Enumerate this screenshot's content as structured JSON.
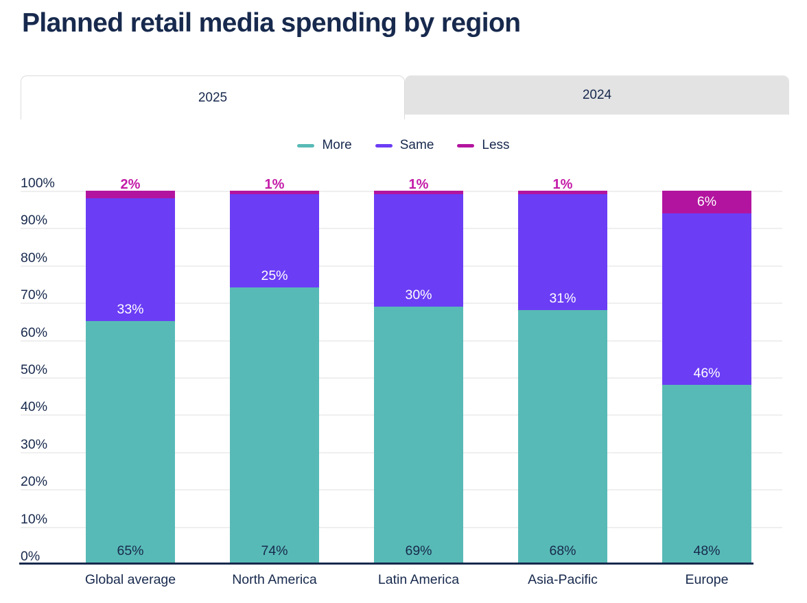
{
  "title": "Planned retail media spending by region",
  "tabs": [
    {
      "label": "2025",
      "active": true
    },
    {
      "label": "2024",
      "active": false
    }
  ],
  "colors": {
    "navy": "#17294d",
    "teal": "#58bab6",
    "purple": "#6b3df5",
    "magenta": "#b3149f",
    "less_label_outline_text": "#c41ba8",
    "label_on_dark": "#ffffff",
    "tab_inactive_bg": "#e3e3e3",
    "tab_active_border": "#dcdcdc",
    "gridline": "#efefef"
  },
  "legend": [
    {
      "label": "More",
      "color_key": "teal"
    },
    {
      "label": "Same",
      "color_key": "purple"
    },
    {
      "label": "Less",
      "color_key": "magenta"
    }
  ],
  "chart_data": {
    "type": "bar",
    "stacked": true,
    "stack_total": 100,
    "title": "Planned retail media spending by region",
    "categories": [
      "Global average",
      "North America",
      "Latin America",
      "Asia-Pacific",
      "Europe"
    ],
    "series": [
      {
        "name": "More",
        "color": "#58bab6",
        "values": [
          65,
          74,
          69,
          68,
          48
        ],
        "labels": [
          "65%",
          "74%",
          "69%",
          "68%",
          "48%"
        ]
      },
      {
        "name": "Same",
        "color": "#6b3df5",
        "values": [
          33,
          25,
          30,
          31,
          46
        ],
        "labels": [
          "33%",
          "25%",
          "30%",
          "31%",
          "46%"
        ]
      },
      {
        "name": "Less",
        "color": "#b3149f",
        "values": [
          2,
          1,
          1,
          1,
          6
        ],
        "labels": [
          "2%",
          "1%",
          "1%",
          "1%",
          "6%"
        ]
      }
    ],
    "xlabel": "",
    "ylabel": "",
    "ylim": [
      0,
      100
    ],
    "yticks": [
      "0%",
      "10%",
      "20%",
      "30%",
      "40%",
      "50%",
      "60%",
      "70%",
      "80%",
      "90%",
      "100%"
    ],
    "grid": true,
    "legend_position": "top"
  }
}
